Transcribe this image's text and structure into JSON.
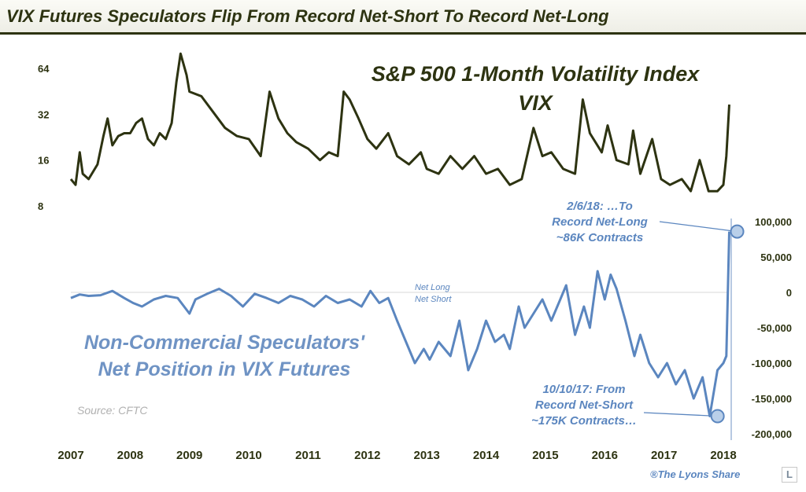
{
  "header": {
    "title": "VIX Futures Speculators Flip From Record Net-Short To Record Net-Long"
  },
  "credit": "®The Lyons Share",
  "logo_letter": "L",
  "colors": {
    "vix_line": "#2d3311",
    "spec_line": "#5b86bf",
    "title_text": "#2d3311",
    "annotation": "#5b86bf"
  },
  "chart_data": [
    {
      "type": "line",
      "title": "S&P 500 1-Month Volatility Index",
      "subtitle": "VIX",
      "y_scale": "log2",
      "ylim": [
        8,
        80
      ],
      "y_ticks": [
        "64",
        "32",
        "16",
        "8"
      ],
      "x_ticks": [
        "2007",
        "2008",
        "2009",
        "2010",
        "2011",
        "2012",
        "2013",
        "2014",
        "2015",
        "2016",
        "2017",
        "2018"
      ],
      "series": [
        {
          "values": [
            [
              2007.0,
              12
            ],
            [
              2007.08,
              11
            ],
            [
              2007.15,
              18
            ],
            [
              2007.2,
              13
            ],
            [
              2007.3,
              12
            ],
            [
              2007.45,
              15
            ],
            [
              2007.55,
              23
            ],
            [
              2007.62,
              30
            ],
            [
              2007.7,
              20
            ],
            [
              2007.8,
              23
            ],
            [
              2007.9,
              24
            ],
            [
              2008.0,
              24
            ],
            [
              2008.1,
              28
            ],
            [
              2008.2,
              30
            ],
            [
              2008.3,
              22
            ],
            [
              2008.4,
              20
            ],
            [
              2008.5,
              24
            ],
            [
              2008.6,
              22
            ],
            [
              2008.7,
              28
            ],
            [
              2008.78,
              52
            ],
            [
              2008.85,
              80
            ],
            [
              2008.95,
              58
            ],
            [
              2009.0,
              45
            ],
            [
              2009.2,
              42
            ],
            [
              2009.4,
              33
            ],
            [
              2009.6,
              26
            ],
            [
              2009.8,
              23
            ],
            [
              2010.0,
              22
            ],
            [
              2010.2,
              17
            ],
            [
              2010.35,
              45
            ],
            [
              2010.5,
              30
            ],
            [
              2010.65,
              24
            ],
            [
              2010.8,
              21
            ],
            [
              2011.0,
              19
            ],
            [
              2011.2,
              16
            ],
            [
              2011.35,
              18
            ],
            [
              2011.5,
              17
            ],
            [
              2011.6,
              45
            ],
            [
              2011.7,
              40
            ],
            [
              2011.85,
              30
            ],
            [
              2012.0,
              22
            ],
            [
              2012.15,
              19
            ],
            [
              2012.35,
              24
            ],
            [
              2012.5,
              17
            ],
            [
              2012.7,
              15
            ],
            [
              2012.9,
              18
            ],
            [
              2013.0,
              14
            ],
            [
              2013.2,
              13
            ],
            [
              2013.4,
              17
            ],
            [
              2013.6,
              14
            ],
            [
              2013.8,
              17
            ],
            [
              2014.0,
              13
            ],
            [
              2014.2,
              14
            ],
            [
              2014.4,
              11
            ],
            [
              2014.6,
              12
            ],
            [
              2014.8,
              26
            ],
            [
              2014.95,
              17
            ],
            [
              2015.1,
              18
            ],
            [
              2015.3,
              14
            ],
            [
              2015.5,
              13
            ],
            [
              2015.63,
              40
            ],
            [
              2015.75,
              24
            ],
            [
              2015.95,
              18
            ],
            [
              2016.05,
              27
            ],
            [
              2016.2,
              16
            ],
            [
              2016.4,
              15
            ],
            [
              2016.48,
              25
            ],
            [
              2016.6,
              13
            ],
            [
              2016.8,
              22
            ],
            [
              2016.95,
              12
            ],
            [
              2017.1,
              11
            ],
            [
              2017.3,
              12
            ],
            [
              2017.45,
              10
            ],
            [
              2017.6,
              16
            ],
            [
              2017.75,
              10
            ],
            [
              2017.9,
              10
            ],
            [
              2018.0,
              11
            ],
            [
              2018.05,
              17
            ],
            [
              2018.1,
              37
            ]
          ]
        }
      ]
    },
    {
      "type": "line",
      "title": "Non-Commercial Speculators' Net Position in VIX Futures",
      "y_ticks": [
        "100,000",
        "50,000",
        "0",
        "-50,000",
        "-100,000",
        "-150,000",
        "-200,000"
      ],
      "ylim": [
        -200000,
        100000
      ],
      "zero_labels": {
        "above": "Net Long",
        "below": "Net Short"
      },
      "source": "Source: CFTC",
      "series": [
        {
          "values": [
            [
              2007.0,
              -8000
            ],
            [
              2007.15,
              -3000
            ],
            [
              2007.3,
              -5000
            ],
            [
              2007.5,
              -4000
            ],
            [
              2007.7,
              2000
            ],
            [
              2007.9,
              -8000
            ],
            [
              2008.05,
              -15000
            ],
            [
              2008.2,
              -20000
            ],
            [
              2008.4,
              -10000
            ],
            [
              2008.6,
              -5000
            ],
            [
              2008.8,
              -8000
            ],
            [
              2009.0,
              -30000
            ],
            [
              2009.1,
              -10000
            ],
            [
              2009.3,
              -2000
            ],
            [
              2009.5,
              5000
            ],
            [
              2009.7,
              -5000
            ],
            [
              2009.9,
              -20000
            ],
            [
              2010.1,
              -2000
            ],
            [
              2010.3,
              -8000
            ],
            [
              2010.5,
              -15000
            ],
            [
              2010.7,
              -5000
            ],
            [
              2010.9,
              -10000
            ],
            [
              2011.1,
              -20000
            ],
            [
              2011.3,
              -5000
            ],
            [
              2011.5,
              -15000
            ],
            [
              2011.7,
              -10000
            ],
            [
              2011.9,
              -20000
            ],
            [
              2012.05,
              2000
            ],
            [
              2012.2,
              -15000
            ],
            [
              2012.35,
              -8000
            ],
            [
              2012.5,
              -40000
            ],
            [
              2012.65,
              -70000
            ],
            [
              2012.8,
              -100000
            ],
            [
              2012.95,
              -80000
            ],
            [
              2013.05,
              -95000
            ],
            [
              2013.2,
              -70000
            ],
            [
              2013.4,
              -90000
            ],
            [
              2013.55,
              -40000
            ],
            [
              2013.7,
              -110000
            ],
            [
              2013.85,
              -80000
            ],
            [
              2014.0,
              -40000
            ],
            [
              2014.15,
              -70000
            ],
            [
              2014.3,
              -60000
            ],
            [
              2014.4,
              -80000
            ],
            [
              2014.55,
              -20000
            ],
            [
              2014.65,
              -50000
            ],
            [
              2014.8,
              -30000
            ],
            [
              2014.95,
              -10000
            ],
            [
              2015.1,
              -40000
            ],
            [
              2015.25,
              -10000
            ],
            [
              2015.35,
              10000
            ],
            [
              2015.5,
              -60000
            ],
            [
              2015.65,
              -20000
            ],
            [
              2015.75,
              -50000
            ],
            [
              2015.88,
              30000
            ],
            [
              2016.0,
              -10000
            ],
            [
              2016.1,
              25000
            ],
            [
              2016.2,
              5000
            ],
            [
              2016.35,
              -40000
            ],
            [
              2016.5,
              -90000
            ],
            [
              2016.6,
              -60000
            ],
            [
              2016.75,
              -100000
            ],
            [
              2016.9,
              -120000
            ],
            [
              2017.05,
              -100000
            ],
            [
              2017.2,
              -130000
            ],
            [
              2017.35,
              -110000
            ],
            [
              2017.5,
              -150000
            ],
            [
              2017.65,
              -120000
            ],
            [
              2017.77,
              -175000
            ],
            [
              2017.9,
              -110000
            ],
            [
              2018.0,
              -100000
            ],
            [
              2018.05,
              -90000
            ],
            [
              2018.1,
              86000
            ]
          ]
        }
      ],
      "annotations": [
        {
          "date": "2/6/18",
          "lines": [
            "2/6/18: …To",
            "Record Net-Long",
            "~86K Contracts"
          ],
          "point": [
            2018.1,
            86000
          ]
        },
        {
          "date": "10/10/17",
          "lines": [
            "10/10/17: From",
            "Record Net-Short",
            "~175K Contracts…"
          ],
          "point": [
            2017.77,
            -175000
          ]
        }
      ]
    }
  ]
}
